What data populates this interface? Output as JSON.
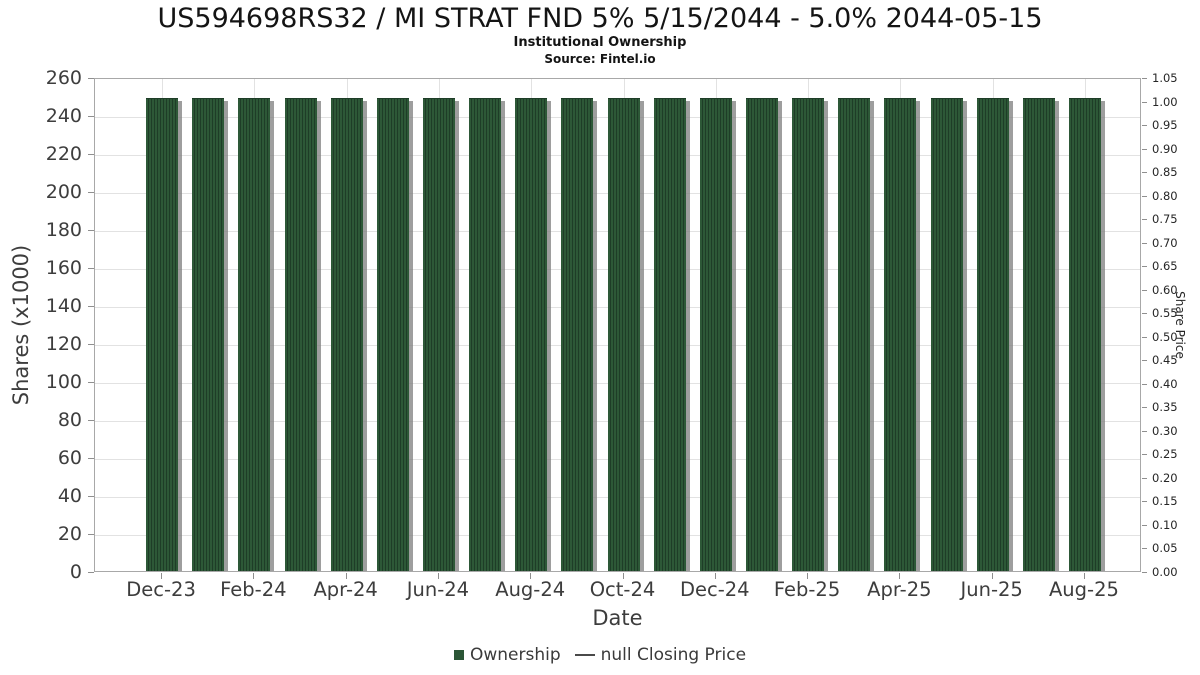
{
  "chart_data": {
    "type": "bar",
    "title": "US594698RS32 / MI STRAT FND 5% 5/15/2044 - 5.0% 2044-05-15",
    "subtitle": "Institutional Ownership",
    "source": "Source: Fintel.io",
    "xlabel": "Date",
    "ylabel_left": "Shares (x1000)",
    "ylabel_right": "Share Price",
    "categories": [
      "Dec-23",
      "Jan-24",
      "Feb-24",
      "Mar-24",
      "Apr-24",
      "May-24",
      "Jun-24",
      "Jul-24",
      "Aug-24",
      "Sep-24",
      "Oct-24",
      "Nov-24",
      "Dec-24",
      "Jan-25",
      "Feb-25",
      "Mar-25",
      "Apr-25",
      "May-25",
      "Jun-25",
      "Jul-25",
      "Aug-25"
    ],
    "values": [
      250,
      250,
      250,
      250,
      250,
      250,
      250,
      250,
      250,
      250,
      250,
      250,
      250,
      250,
      250,
      250,
      250,
      250,
      250,
      250,
      250
    ],
    "x_tick_labels": [
      "Dec-23",
      "Feb-24",
      "Apr-24",
      "Jun-24",
      "Aug-24",
      "Oct-24",
      "Dec-24",
      "Feb-25",
      "Apr-25",
      "Jun-25",
      "Aug-25"
    ],
    "ylim_left": [
      0,
      260
    ],
    "ytick_step_left": 20,
    "ylim_right": [
      0,
      1.05
    ],
    "ytick_step_right": 0.05,
    "grid": true,
    "legend_position": "bottom",
    "legend": [
      {
        "label": "Ownership",
        "type": "bar",
        "color": "#2b5636"
      },
      {
        "label": "null Closing Price",
        "type": "line",
        "color": "#4a4a4a"
      }
    ],
    "colors": {
      "bar_fill": "#2d5837",
      "bar_stripe": "#1e3d27",
      "bar_shadow": "#7d7d7d",
      "grid": "#e2e2e2",
      "axis_border": "#a8a8a8",
      "tick": "#8f8f8f",
      "title_text": "#141414",
      "axis_text": "#3d3d3d"
    }
  }
}
